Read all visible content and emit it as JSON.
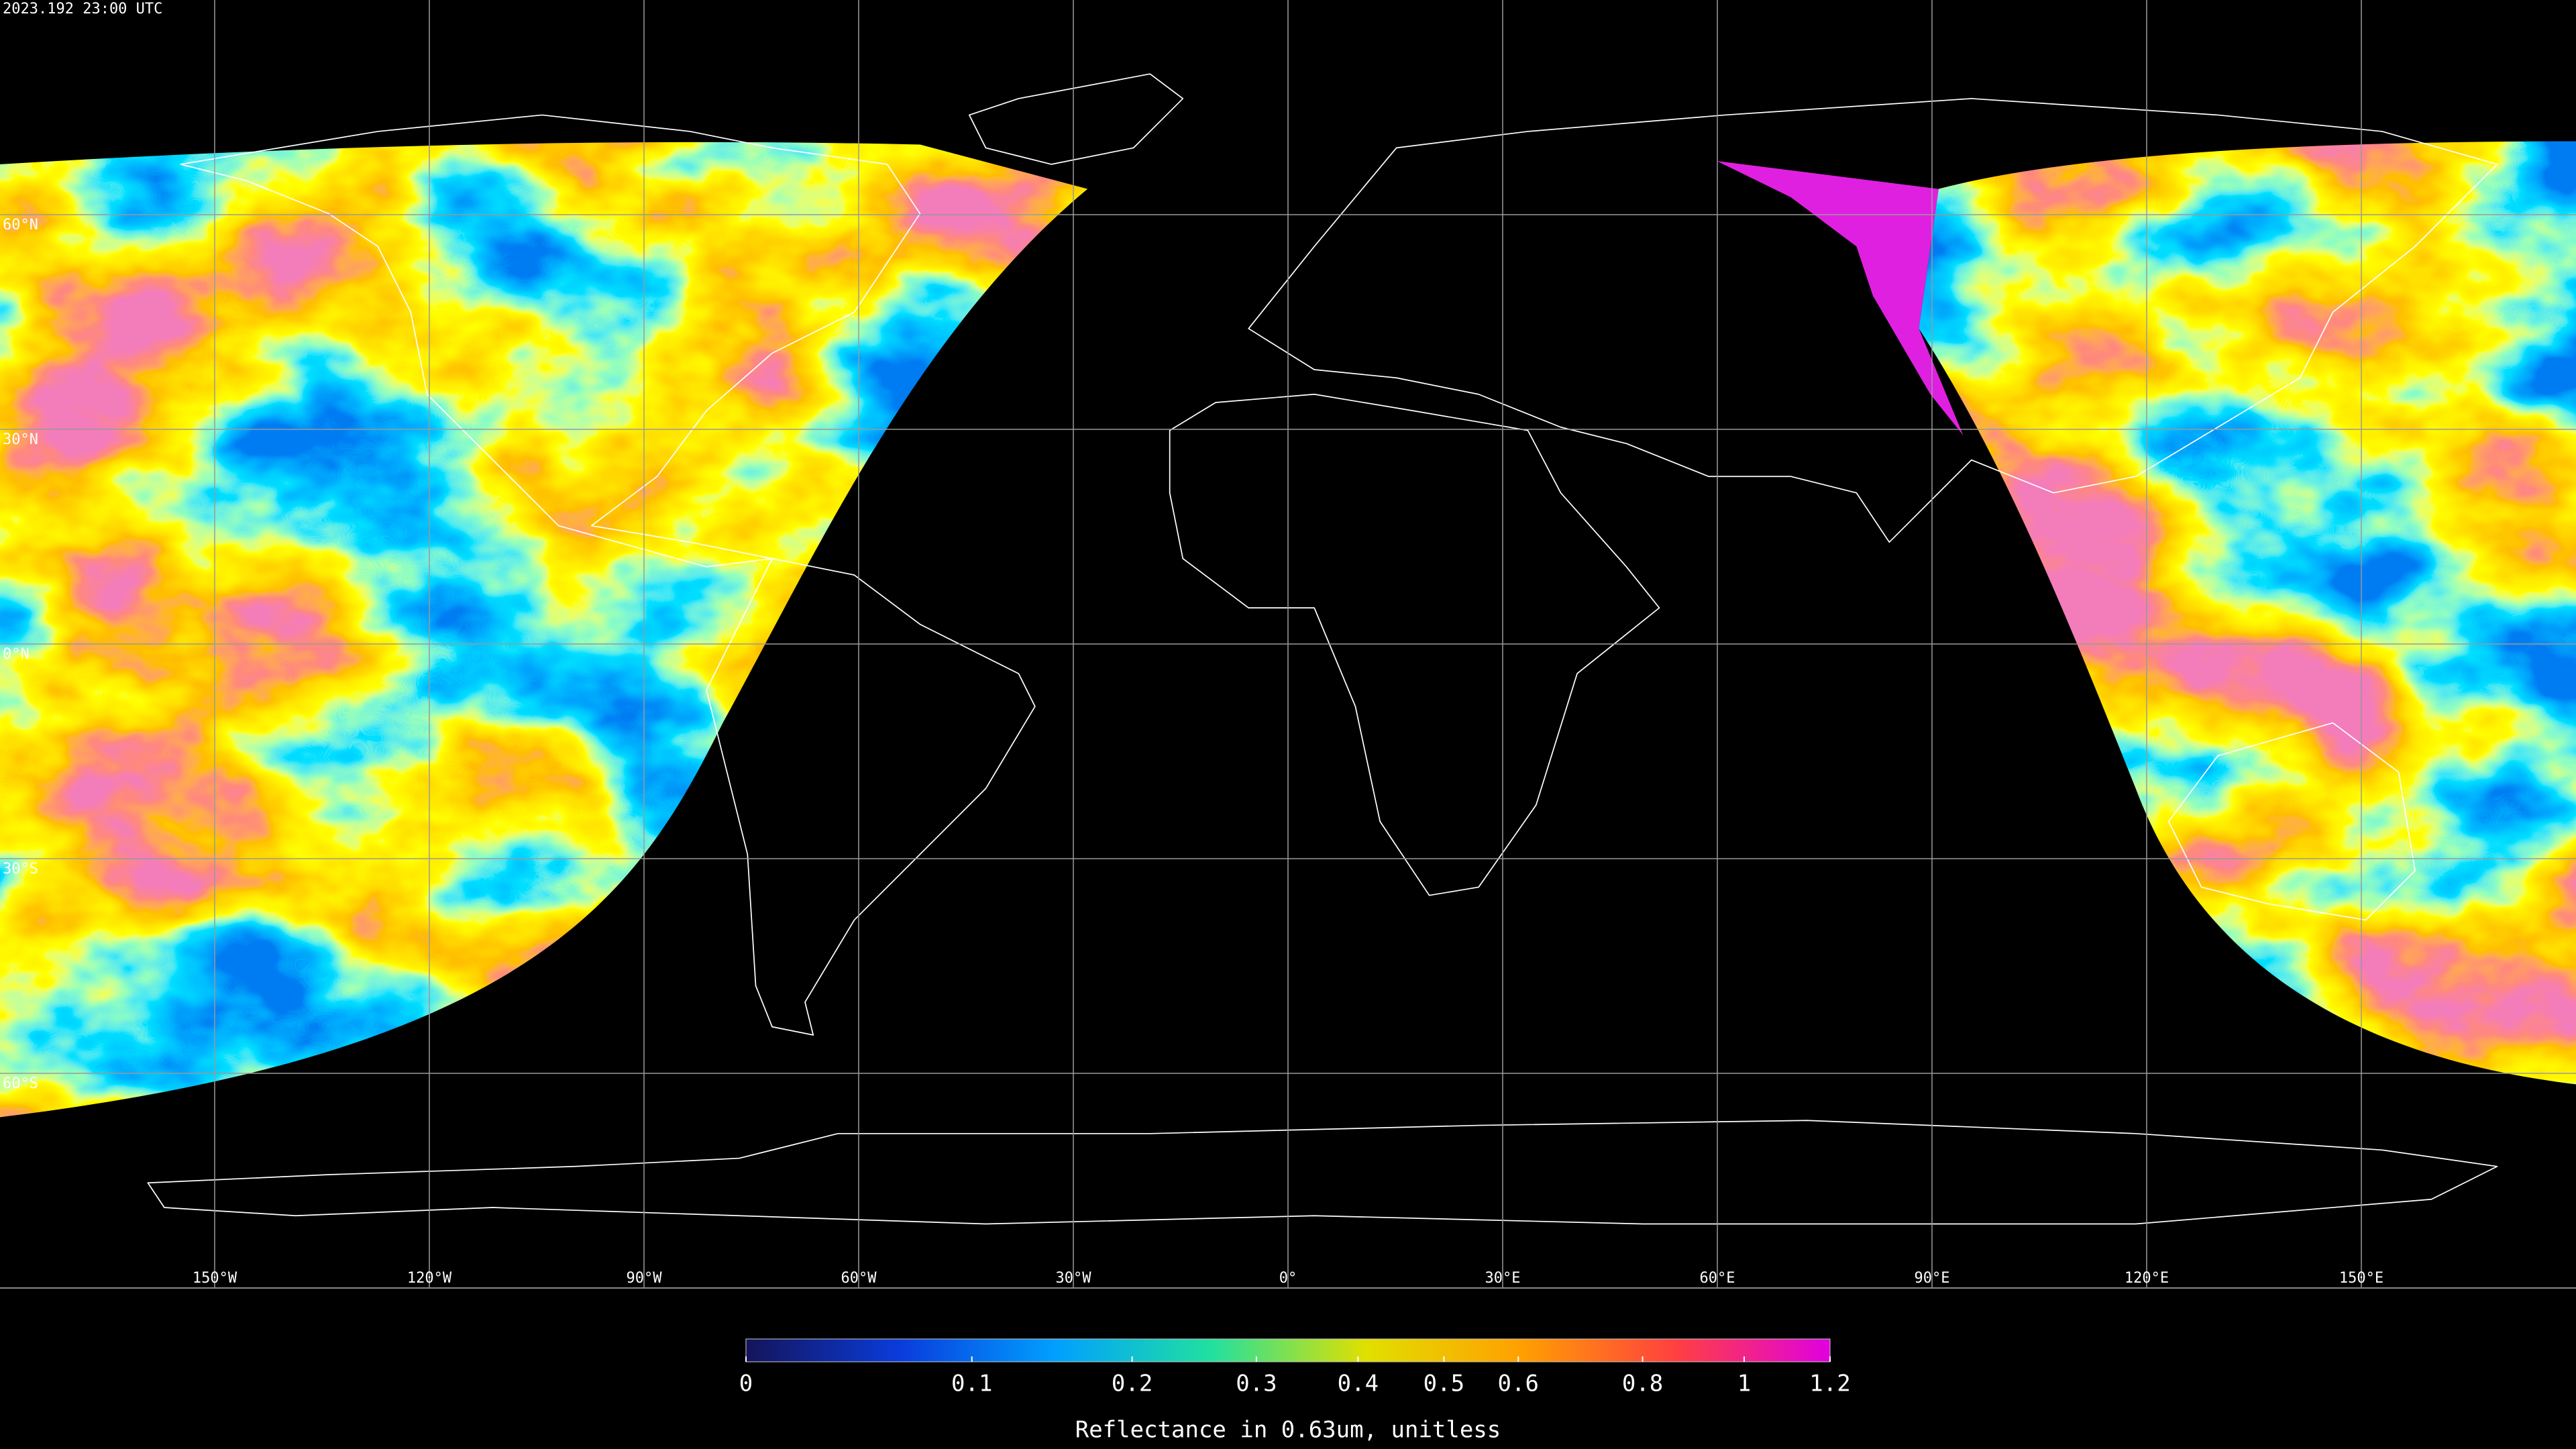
{
  "header": {
    "timestamp": "2023.192 23:00 UTC"
  },
  "map": {
    "lat_labels": [
      "60°N",
      "30°N",
      "0°N",
      "30°S",
      "60°S"
    ],
    "lon_labels": [
      "150°W",
      "120°W",
      "90°W",
      "60°W",
      "30°W",
      "0°",
      "30°E",
      "60°E",
      "90°E",
      "120°E",
      "150°E"
    ]
  },
  "colorbar": {
    "label": "Reflectance in 0.63um, unitless",
    "range": [
      0,
      1.2
    ],
    "ticks": [
      0,
      0.1,
      0.2,
      0.3,
      0.4,
      0.5,
      0.6,
      0.8,
      1,
      1.2
    ],
    "colors": [
      "#14145a",
      "#0a3cdc",
      "#00a0ff",
      "#20e0a0",
      "#e0e000",
      "#ffa000",
      "#ff4040",
      "#e000e0"
    ]
  }
}
